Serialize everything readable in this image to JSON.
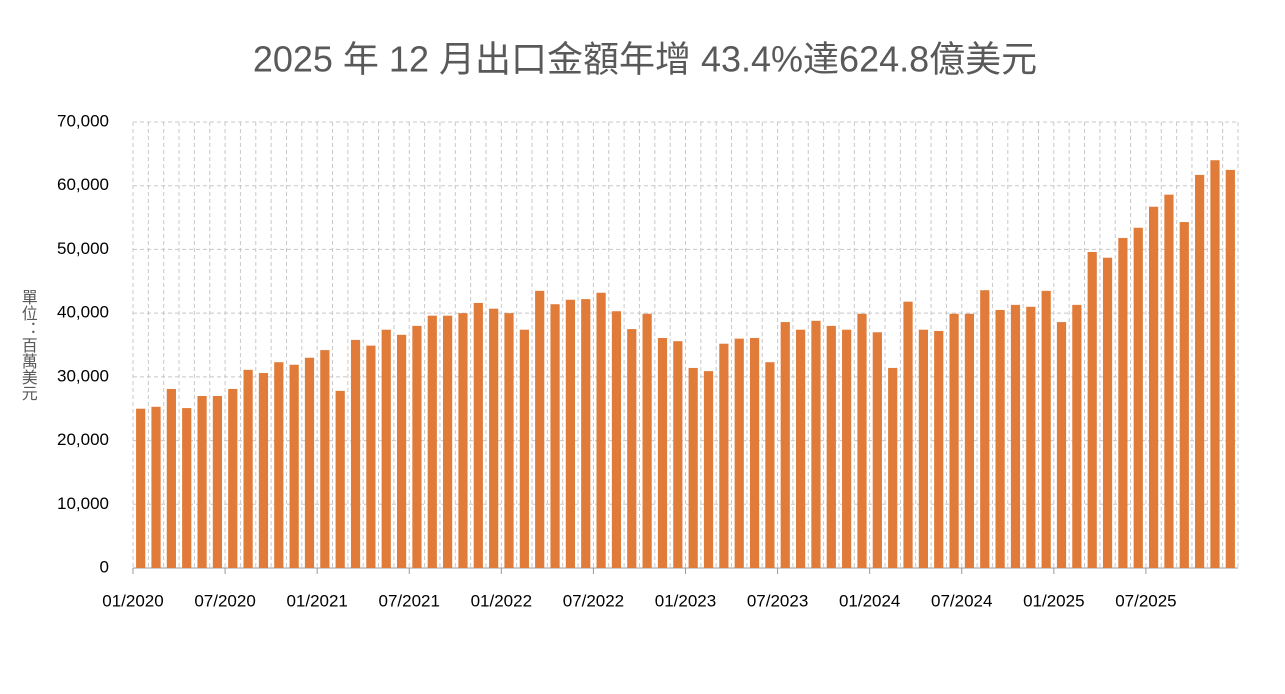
{
  "chart_data": {
    "type": "bar",
    "title": "2025 年 12 月出口金額年增 43.4%達624.8億美元",
    "y_label": "單位：百萬美元",
    "categories": [
      "01/2020",
      null,
      null,
      null,
      null,
      null,
      "07/2020",
      null,
      null,
      null,
      null,
      null,
      "01/2021",
      null,
      null,
      null,
      null,
      null,
      "07/2021",
      null,
      null,
      null,
      null,
      null,
      "01/2022",
      null,
      null,
      null,
      null,
      null,
      "07/2022",
      null,
      null,
      null,
      null,
      null,
      "01/2023",
      null,
      null,
      null,
      null,
      null,
      "07/2023",
      null,
      null,
      null,
      null,
      null,
      "01/2024",
      null,
      null,
      null,
      null,
      null,
      "07/2024",
      null,
      null,
      null,
      null,
      null,
      "01/2025",
      null,
      null,
      null,
      null,
      null,
      "07/2025",
      null,
      null,
      null,
      null,
      null
    ],
    "values": [
      25000,
      25300,
      28100,
      25100,
      27000,
      27000,
      28100,
      31100,
      30600,
      32300,
      31900,
      33000,
      34200,
      27800,
      35800,
      34900,
      37400,
      36600,
      38000,
      39600,
      39600,
      40000,
      41600,
      40700,
      40000,
      37400,
      43500,
      41400,
      42100,
      42200,
      43200,
      40300,
      37500,
      39900,
      36100,
      35600,
      31400,
      30900,
      35200,
      36000,
      36100,
      32300,
      38600,
      37400,
      38800,
      38000,
      37400,
      39900,
      37000,
      31400,
      41800,
      37400,
      37200,
      39900,
      39900,
      43600,
      40500,
      41300,
      41000,
      43500,
      38600,
      41300,
      49600,
      48700,
      51800,
      53400,
      56700,
      58600,
      54300,
      61700,
      64000,
      62480
    ],
    "color": "#e07b39",
    "ylim": [
      0,
      70000
    ],
    "yticks": [
      0,
      {
        "value": 10000,
        "label": "10,000"
      },
      {
        "value": 20000,
        "label": "20,000"
      },
      {
        "value": 30000,
        "label": "30,000"
      },
      {
        "value": 40000,
        "label": "40,000"
      },
      {
        "value": 50000,
        "label": "50,000"
      },
      {
        "value": 60000,
        "label": "60,000"
      },
      {
        "value": 70000,
        "label": "70,000"
      }
    ],
    "grid": true
  }
}
